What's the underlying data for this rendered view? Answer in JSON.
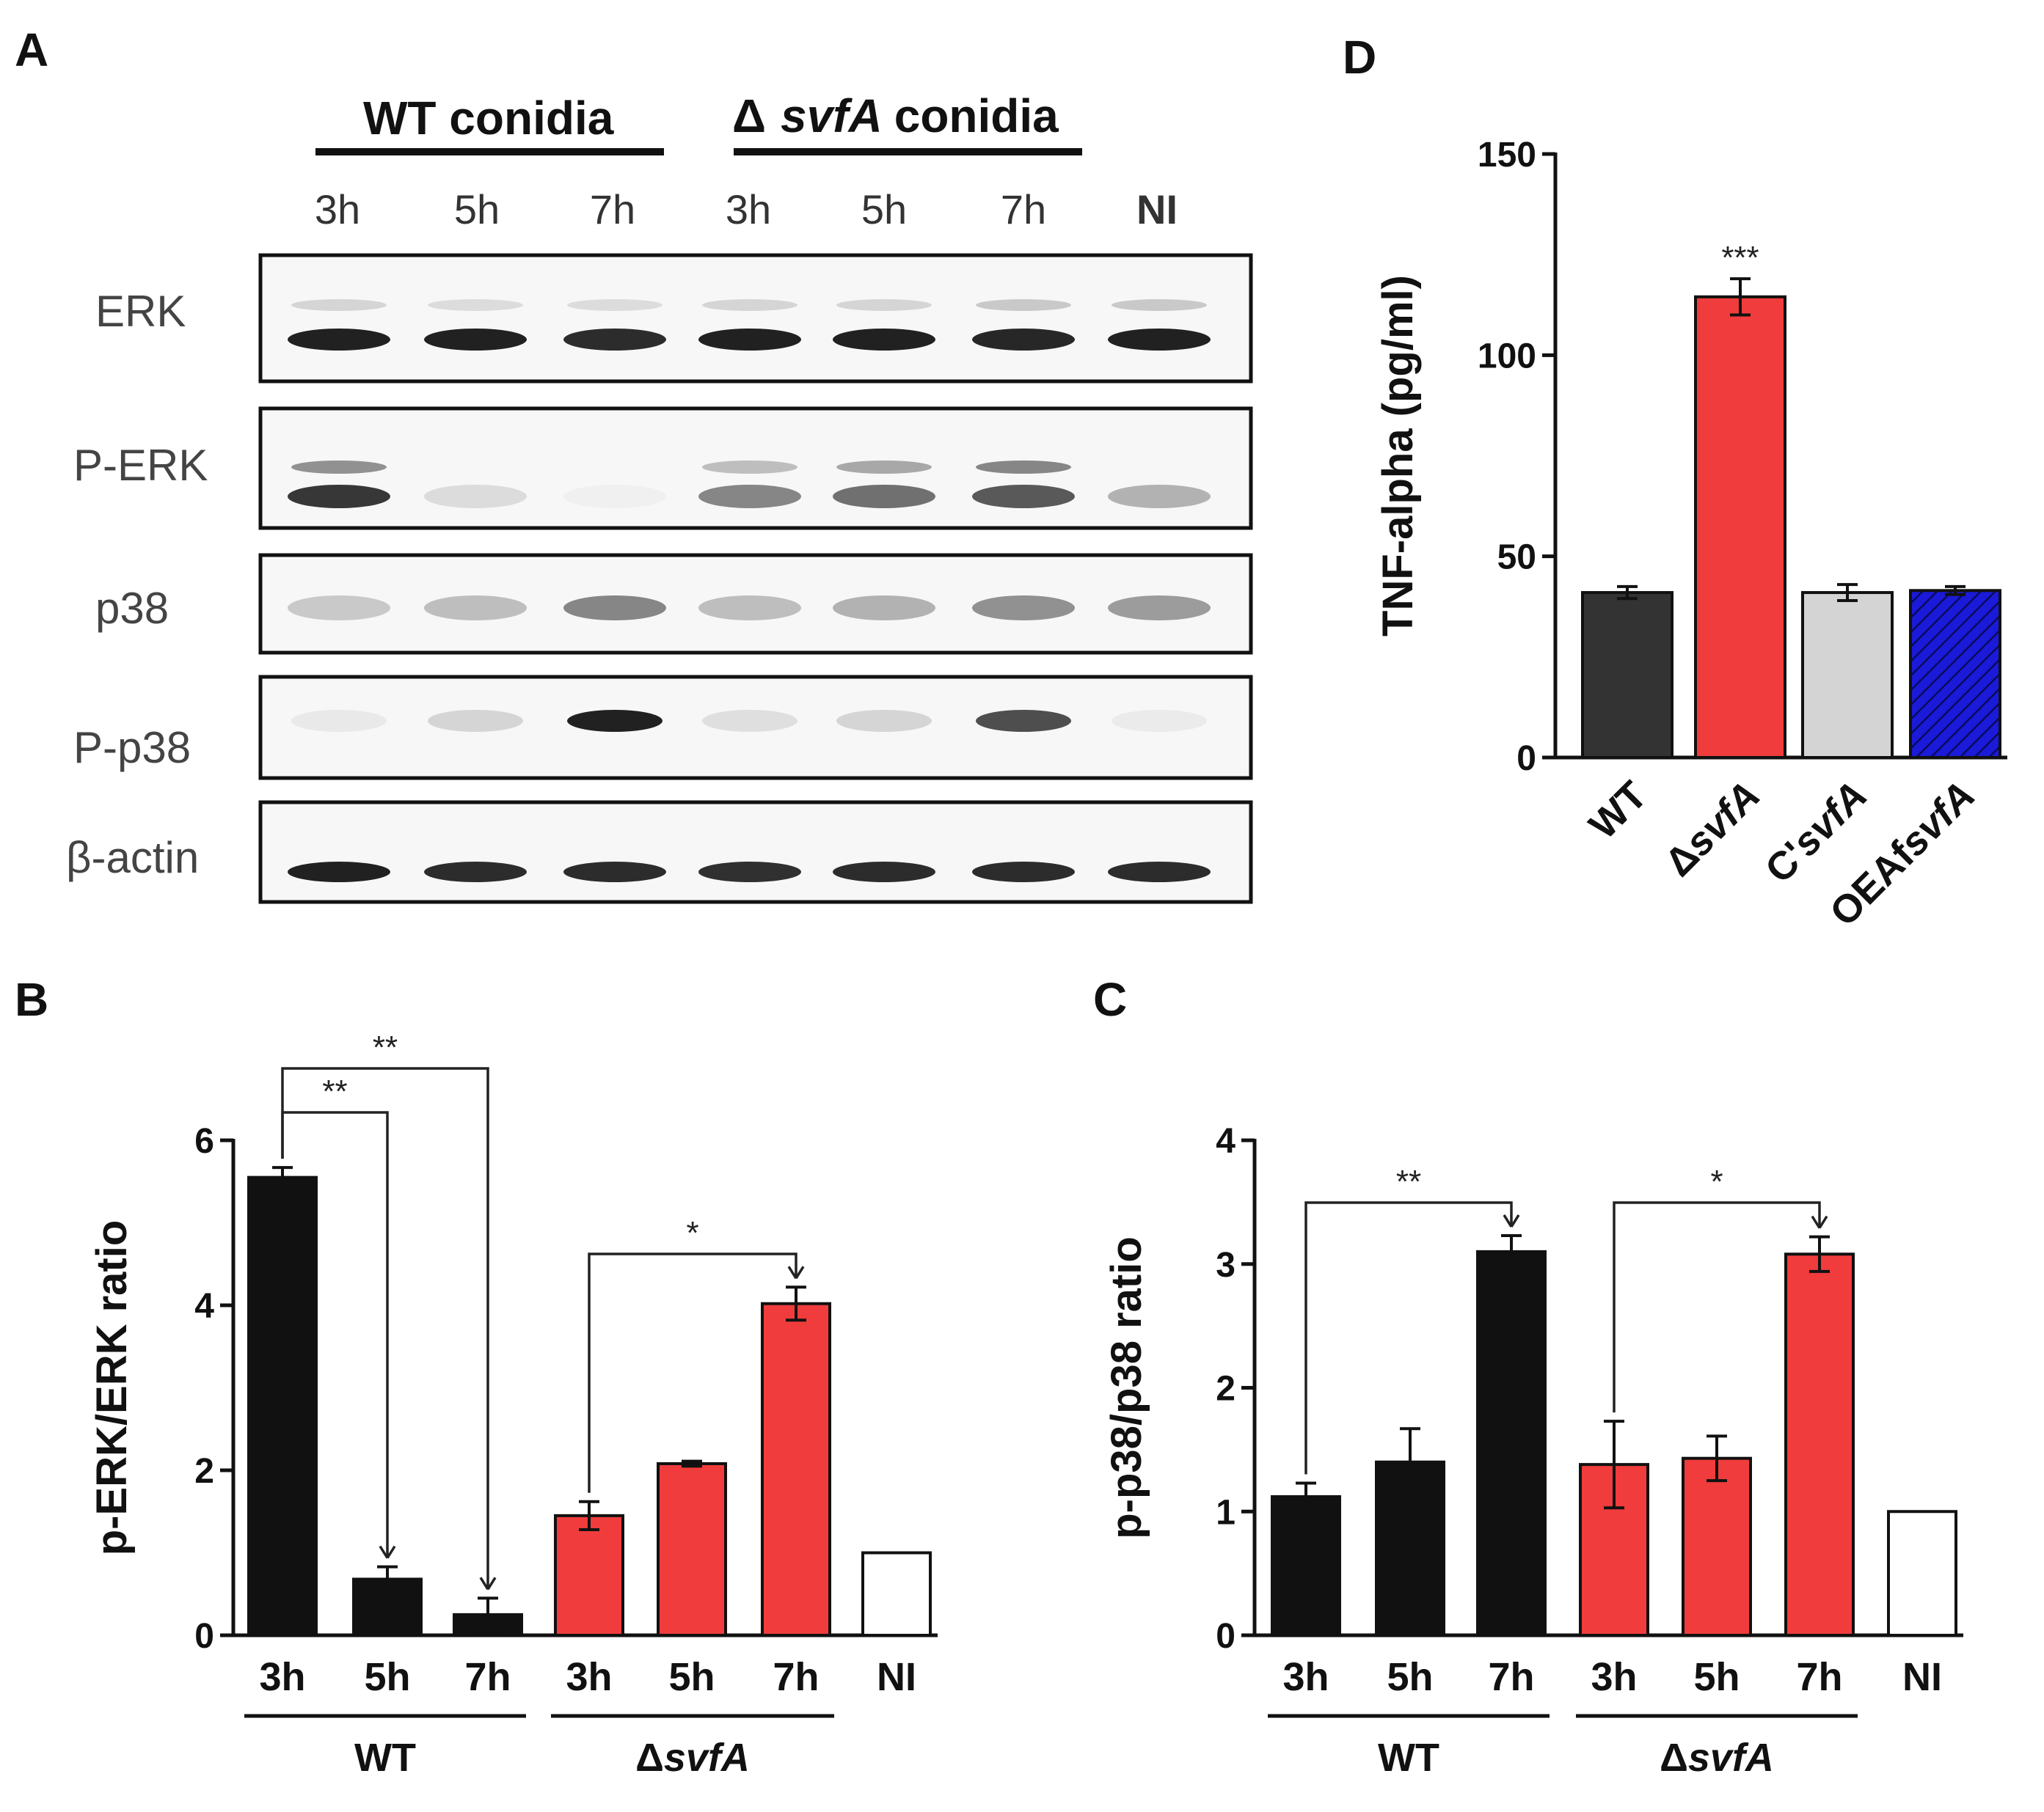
{
  "panel_labels": {
    "a": "A",
    "b": "B",
    "c": "C",
    "d": "D"
  },
  "blot": {
    "group_wt": "WT conidia",
    "group_ko_delta": "Δ",
    "group_ko_gene": "svfA",
    "group_ko_suffix": "conidia",
    "lanes": [
      "3h",
      "5h",
      "7h",
      "3h",
      "5h",
      "7h",
      "NI"
    ],
    "rows": [
      "ERK",
      "P-ERK",
      "p38",
      "P-p38",
      "β-actin"
    ]
  },
  "colors": {
    "wt": "#111111",
    "ko": "#f03c3c",
    "ni": "#ffffff",
    "comp": "#d4d4d4",
    "oe": "#1a1ad8",
    "wt_d": "#333333"
  },
  "chart_data": [
    {
      "panel": "B",
      "type": "bar",
      "ylabel": "p-ERK/ERK ratio",
      "ylim": [
        0,
        6
      ],
      "yticks": [
        "0",
        "2",
        "4",
        "6"
      ],
      "categories": [
        "3h",
        "5h",
        "7h",
        "3h",
        "5h",
        "7h",
        "NI"
      ],
      "values": [
        5.55,
        0.68,
        0.25,
        1.45,
        2.08,
        4.02,
        1.0
      ],
      "errors": [
        0.12,
        0.15,
        0.2,
        0.17,
        0.03,
        0.2,
        0
      ],
      "color_groups": [
        "wt",
        "wt",
        "wt",
        "ko",
        "ko",
        "ko",
        "ni"
      ],
      "groups": [
        {
          "label": "WT",
          "prefix": "",
          "italic": ""
        },
        {
          "label": "ΔsvfA",
          "prefix": "Δ",
          "italic": "svfA"
        }
      ],
      "significance": [
        {
          "from": 0,
          "to": 2,
          "label": "**"
        },
        {
          "from": 0,
          "to": 1,
          "label": "**"
        },
        {
          "from": 3,
          "to": 5,
          "label": "*"
        }
      ]
    },
    {
      "panel": "C",
      "type": "bar",
      "ylabel": "p-p38/p38 ratio",
      "ylim": [
        0,
        4
      ],
      "yticks": [
        "0",
        "1",
        "2",
        "3",
        "4"
      ],
      "categories": [
        "3h",
        "5h",
        "7h",
        "3h",
        "5h",
        "7h",
        "NI"
      ],
      "values": [
        1.12,
        1.4,
        3.1,
        1.38,
        1.43,
        3.08,
        1.0
      ],
      "errors": [
        0.11,
        0.27,
        0.13,
        0.35,
        0.18,
        0.14,
        0
      ],
      "color_groups": [
        "wt",
        "wt",
        "wt",
        "ko",
        "ko",
        "ko",
        "ni"
      ],
      "groups": [
        {
          "label": "WT",
          "prefix": "",
          "italic": ""
        },
        {
          "label": "ΔsvfA",
          "prefix": "Δ",
          "italic": "svfA"
        }
      ],
      "significance": [
        {
          "from": 0,
          "to": 2,
          "label": "**"
        },
        {
          "from": 3,
          "to": 5,
          "label": "*"
        }
      ]
    },
    {
      "panel": "D",
      "type": "bar",
      "ylabel": "TNF-alpha (pg/ml)",
      "ylim": [
        0,
        150
      ],
      "yticks": [
        "0",
        "50",
        "100",
        "150"
      ],
      "categories": [
        "WT",
        "ΔsvfA",
        "C'svfA",
        "OEAfsvfA"
      ],
      "category_parts": [
        [
          "WT",
          ""
        ],
        [
          "Δ",
          "svfA"
        ],
        [
          "C'",
          "svfA"
        ],
        [
          "OEAf",
          "svfA"
        ]
      ],
      "values": [
        41,
        114.5,
        41,
        41.5
      ],
      "errors": [
        1.5,
        4.5,
        2,
        1
      ],
      "color_groups": [
        "wt_d",
        "ko",
        "comp",
        "oe"
      ],
      "annotations": [
        {
          "index": 1,
          "label": "***"
        }
      ]
    }
  ]
}
